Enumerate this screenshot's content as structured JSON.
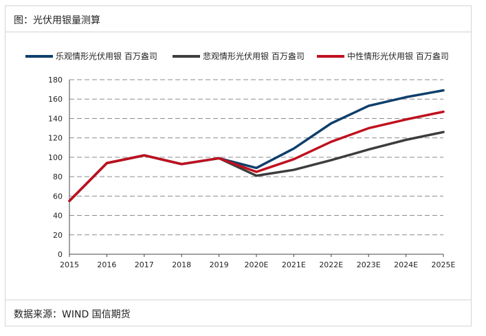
{
  "header": {
    "title": "图：光伏用银量测算"
  },
  "footer": {
    "source": "数据来源：WIND 国信期货"
  },
  "chart_data": {
    "type": "line",
    "x": [
      "2015",
      "2016",
      "2017",
      "2018",
      "2019",
      "2020E",
      "2021E",
      "2022E",
      "2023E",
      "2024E",
      "2025E"
    ],
    "ylim": [
      0,
      180
    ],
    "yticks": [
      0,
      20,
      40,
      60,
      80,
      100,
      120,
      140,
      160,
      180
    ],
    "grid": true,
    "legend_position": "top",
    "series": [
      {
        "name": "乐观情形光伏用银 百万盎司",
        "color": "#0e3f6b",
        "values": [
          55,
          94,
          102,
          93,
          99,
          89,
          109,
          135,
          153,
          162,
          169
        ]
      },
      {
        "name": "悲观情形光伏用银 百万盎司",
        "color": "#3d3d3d",
        "values": [
          55,
          94,
          102,
          93,
          99,
          81,
          87,
          97,
          108,
          118,
          126
        ]
      },
      {
        "name": "中性情形光伏用银 百万盎司",
        "color": "#c0101e",
        "values": [
          55,
          94,
          102,
          93,
          99,
          85,
          98,
          116,
          130,
          139,
          147
        ]
      }
    ]
  }
}
